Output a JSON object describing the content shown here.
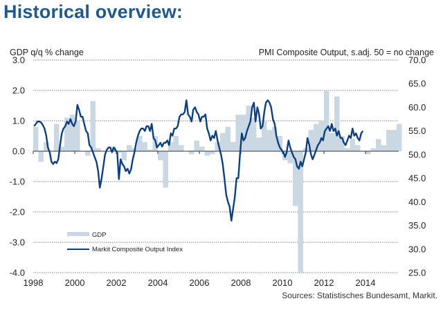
{
  "title": "Historical overview:",
  "chart_data": {
    "type": "bar+line",
    "title": "Historical overview:",
    "left_axis_label": "GDP q/q % change",
    "right_axis_label": "PMI Composite  Output,  s.adj. 50 = no change",
    "left_ylim": [
      -4.0,
      3.0
    ],
    "right_ylim": [
      25.0,
      70.0
    ],
    "left_ticks": [
      "3.0",
      "2.0",
      "1.0",
      "0.0",
      "-1.0",
      "-2.0",
      "-3.0",
      "-4.0"
    ],
    "right_ticks": [
      "70.0",
      "65.0",
      "60.0",
      "55.0",
      "50.0",
      "45.0",
      "40.0",
      "35.0",
      "30.0",
      "25.0"
    ],
    "x_ticks": [
      "1998",
      "2000",
      "2002",
      "2004",
      "2006",
      "2008",
      "2010",
      "2012",
      "2014"
    ],
    "x_range": [
      1998.0,
      2015.6
    ],
    "grid": true,
    "legend_position": "bottom-left",
    "source": "Sources: Statistisches Bundesamt, Markit.",
    "series": [
      {
        "name": "GDP",
        "type": "bar",
        "axis": "left",
        "color": "#c9d8e3",
        "start": "1998Q1",
        "frequency": "quarterly",
        "values": [
          0.8,
          -0.35,
          0.3,
          0.0,
          0.9,
          0.15,
          1.1,
          1.2,
          1.0,
          0.0,
          -0.15,
          1.65,
          0.1,
          0.0,
          0.0,
          0.15,
          -0.05,
          -0.3,
          0.2,
          0.1,
          0.5,
          0.3,
          0.05,
          0.5,
          -0.3,
          -1.2,
          0.3,
          0.5,
          0.2,
          0.0,
          -0.1,
          0.35,
          0.15,
          -0.15,
          -0.1,
          0.3,
          0.6,
          0.8,
          0.3,
          1.2,
          1.2,
          1.5,
          1.1,
          0.45,
          1.0,
          0.7,
          0.8,
          0.5,
          -0.3,
          -0.4,
          -1.8,
          -4.0,
          0.1,
          0.7,
          0.9,
          1.0,
          2.0,
          0.6,
          1.8,
          0.5,
          0.1,
          0.4,
          0.2,
          0.0,
          -0.1,
          0.1,
          0.4,
          0.2,
          0.7,
          0.7,
          0.9
        ],
        "note": "values approximate, read from bar heights"
      },
      {
        "name": "Markit Composite Output Index",
        "type": "line",
        "axis": "right",
        "color": "#0d3f7f",
        "start": "1998-01",
        "frequency": "monthly",
        "values": [
          56.0,
          56.5,
          57.0,
          57.0,
          56.8,
          56.3,
          55.5,
          54.0,
          51.5,
          50.5,
          48.5,
          48.0,
          48.5,
          48.2,
          49.0,
          52.0,
          54.5,
          55.5,
          56.0,
          57.0,
          56.5,
          57.5,
          56.5,
          56.0,
          57.0,
          60.5,
          59.5,
          58.0,
          58.0,
          56.5,
          55.0,
          54.5,
          52.0,
          51.5,
          50.5,
          49.5,
          48.5,
          46.5,
          43.0,
          45.0,
          47.5,
          50.0,
          51.0,
          51.5,
          51.5,
          50.5,
          51.5,
          51.0,
          50.5,
          44.8,
          49.0,
          48.0,
          47.5,
          46.5,
          47.0,
          46.0,
          46.8,
          49.0,
          50.5,
          52.5,
          54.0,
          55.0,
          55.5,
          55.5,
          55.0,
          56.0,
          56.0,
          55.0,
          56.5,
          53.5,
          53.0,
          51.5,
          52.0,
          52.5,
          51.7,
          52.5,
          52.5,
          53.0,
          52.0,
          54.5,
          54.0,
          55.5,
          55.5,
          56.0,
          58.0,
          58.5,
          58.5,
          59.0,
          61.5,
          58.5,
          58.0,
          57.0,
          59.5,
          60.0,
          59.0,
          58.5,
          57.0,
          58.0,
          58.0,
          58.5,
          55.5,
          54.5,
          53.0,
          54.0,
          53.5,
          55.0,
          53.0,
          51.5,
          50.0,
          48.0,
          45.0,
          41.5,
          40.0,
          39.0,
          36.0,
          38.5,
          41.0,
          45.0,
          45.0,
          50.0,
          54.5,
          53.0,
          53.5,
          55.0,
          56.0,
          57.0,
          60.0,
          61.0,
          57.0,
          60.0,
          58.5,
          55.5,
          56.0,
          59.0,
          61.0,
          61.5,
          61.0,
          60.0,
          57.5,
          56.5,
          54.0,
          52.5,
          51.5,
          51.0,
          50.5,
          49.5,
          50.5,
          53.0,
          51.5,
          50.5,
          49.5,
          49.0,
          47.5,
          47.0,
          48.5,
          47.5,
          49.0,
          50.5,
          53.5,
          52.0,
          50.0,
          49.0,
          50.0,
          51.0,
          52.0,
          52.5,
          53.5,
          53.0,
          55.0,
          55.5,
          56.0,
          55.0,
          56.5,
          55.0,
          55.5,
          54.0,
          55.0,
          53.5,
          53.5,
          52.5,
          52.0,
          53.0,
          54.0,
          53.5,
          55.5,
          54.0,
          54.5,
          53.5,
          53.0,
          54.5,
          55.0
        ],
        "note": "values approximate, read from line position"
      }
    ]
  },
  "legend": {
    "gdp": "GDP",
    "pmi": "Markit Composite Output Index"
  }
}
